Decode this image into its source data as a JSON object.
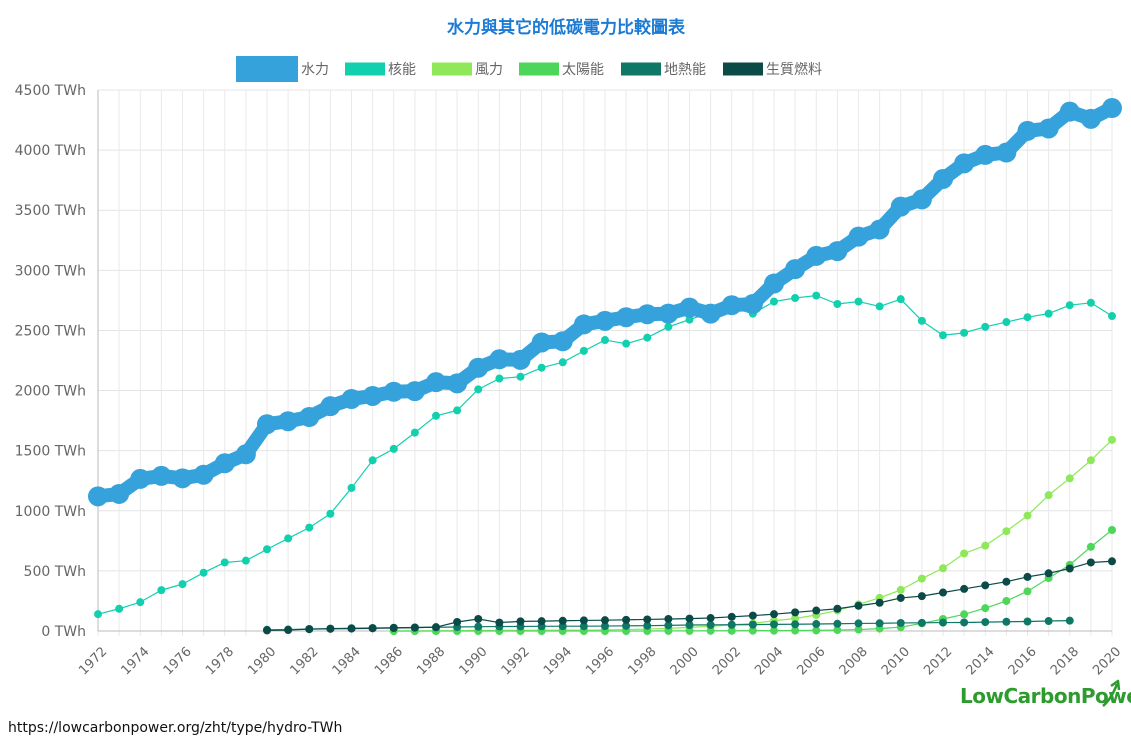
{
  "chart_data": {
    "type": "line",
    "title": "水力與其它的低碳電力比較圖表",
    "xlabel": "",
    "ylabel": "",
    "x_range": [
      1972,
      2020
    ],
    "ylim": [
      0,
      4500
    ],
    "y_ticks": [
      0,
      500,
      1000,
      1500,
      2000,
      2500,
      3000,
      3500,
      4000,
      4500
    ],
    "y_tick_suffix": " TWh",
    "x_ticks": [
      "1972",
      "1974",
      "1976",
      "1978",
      "1980",
      "1982",
      "1984",
      "1986",
      "1988",
      "1990",
      "1992",
      "1994",
      "1996",
      "1998",
      "2000",
      "2002",
      "2004",
      "2006",
      "2008",
      "2010",
      "2012",
      "2014",
      "2016",
      "2018",
      "2020"
    ],
    "grid": true,
    "legend_position": "top-center",
    "series": [
      {
        "name": "水力",
        "color": "#36a2dc",
        "emphasis": "thick",
        "x": [
          1972,
          1973,
          1974,
          1975,
          1976,
          1977,
          1978,
          1979,
          1980,
          1981,
          1982,
          1983,
          1984,
          1985,
          1986,
          1987,
          1988,
          1989,
          1990,
          1991,
          1992,
          1993,
          1994,
          1995,
          1996,
          1997,
          1998,
          1999,
          2000,
          2001,
          2002,
          2003,
          2004,
          2005,
          2006,
          2007,
          2008,
          2009,
          2010,
          2011,
          2012,
          2013,
          2014,
          2015,
          2016,
          2017,
          2018,
          2019,
          2020
        ],
        "values": [
          1120,
          1140,
          1265,
          1290,
          1270,
          1300,
          1395,
          1470,
          1720,
          1745,
          1780,
          1870,
          1930,
          1955,
          1990,
          1995,
          2070,
          2060,
          2190,
          2260,
          2255,
          2400,
          2410,
          2550,
          2580,
          2610,
          2635,
          2640,
          2690,
          2640,
          2710,
          2720,
          2890,
          3010,
          3120,
          3160,
          3280,
          3340,
          3530,
          3590,
          3760,
          3890,
          3960,
          3980,
          4160,
          4180,
          4320,
          4260,
          4350
        ]
      },
      {
        "name": "核能",
        "color": "#12d0ae",
        "emphasis": "normal",
        "x": [
          1972,
          1973,
          1974,
          1975,
          1976,
          1977,
          1978,
          1979,
          1980,
          1981,
          1982,
          1983,
          1984,
          1985,
          1986,
          1987,
          1988,
          1989,
          1990,
          1991,
          1992,
          1993,
          1994,
          1995,
          1996,
          1997,
          1998,
          1999,
          2000,
          2001,
          2002,
          2003,
          2004,
          2005,
          2006,
          2007,
          2008,
          2009,
          2010,
          2011,
          2012,
          2013,
          2014,
          2015,
          2016,
          2017,
          2018,
          2019,
          2020
        ],
        "values": [
          140,
          185,
          240,
          340,
          390,
          485,
          570,
          585,
          680,
          770,
          860,
          975,
          1190,
          1420,
          1515,
          1650,
          1790,
          1835,
          2010,
          2100,
          2115,
          2190,
          2235,
          2330,
          2420,
          2390,
          2440,
          2530,
          2590,
          2650,
          2690,
          2640,
          2740,
          2770,
          2790,
          2720,
          2740,
          2700,
          2760,
          2580,
          2460,
          2480,
          2530,
          2570,
          2610,
          2640,
          2710,
          2730,
          2620
        ]
      },
      {
        "name": "風力",
        "color": "#8ee85a",
        "emphasis": "normal",
        "x": [
          1986,
          1987,
          1988,
          1989,
          1990,
          1991,
          1992,
          1993,
          1994,
          1995,
          1996,
          1997,
          1998,
          1999,
          2000,
          2001,
          2002,
          2003,
          2004,
          2005,
          2006,
          2007,
          2008,
          2009,
          2010,
          2011,
          2012,
          2013,
          2014,
          2015,
          2016,
          2017,
          2018,
          2019,
          2020
        ],
        "values": [
          0,
          0,
          1,
          2,
          4,
          5,
          5,
          6,
          7,
          8,
          9,
          12,
          16,
          21,
          31,
          38,
          52,
          63,
          85,
          104,
          133,
          171,
          221,
          276,
          342,
          436,
          522,
          645,
          710,
          830,
          960,
          1130,
          1270,
          1420,
          1590
        ]
      },
      {
        "name": "太陽能",
        "color": "#4dd65a",
        "emphasis": "normal",
        "x": [
          1986,
          1987,
          1988,
          1989,
          1990,
          1991,
          1992,
          1993,
          1994,
          1995,
          1996,
          1997,
          1998,
          1999,
          2000,
          2001,
          2002,
          2003,
          2004,
          2005,
          2006,
          2007,
          2008,
          2009,
          2010,
          2011,
          2012,
          2013,
          2014,
          2015,
          2016,
          2017,
          2018,
          2019,
          2020
        ],
        "values": [
          0,
          0,
          0,
          0,
          0,
          0,
          0,
          0,
          0,
          0,
          0,
          0,
          0,
          1,
          1,
          2,
          2,
          3,
          3,
          4,
          5,
          8,
          12,
          20,
          32,
          64,
          100,
          139,
          190,
          250,
          330,
          440,
          550,
          700,
          840
        ]
      },
      {
        "name": "地熱能",
        "color": "#0f7766",
        "emphasis": "normal",
        "x": [
          1980,
          1981,
          1982,
          1983,
          1984,
          1985,
          1986,
          1987,
          1988,
          1989,
          1990,
          1991,
          1992,
          1993,
          1994,
          1995,
          1996,
          1997,
          1998,
          1999,
          2000,
          2001,
          2002,
          2003,
          2004,
          2005,
          2006,
          2007,
          2008,
          2009,
          2010,
          2011,
          2012,
          2013,
          2014,
          2015,
          2016,
          2017,
          2018
        ],
        "values": [
          10,
          12,
          17,
          20,
          23,
          25,
          27,
          29,
          31,
          33,
          36,
          37,
          38,
          39,
          40,
          40,
          41,
          43,
          44,
          47,
          50,
          51,
          52,
          53,
          55,
          56,
          58,
          60,
          63,
          64,
          67,
          68,
          70,
          71,
          74,
          77,
          79,
          83,
          86
        ]
      },
      {
        "name": "生質燃料",
        "color": "#0b4a47",
        "emphasis": "normal",
        "x": [
          1980,
          1981,
          1982,
          1983,
          1984,
          1985,
          1986,
          1987,
          1988,
          1989,
          1990,
          1991,
          1992,
          1993,
          1994,
          1995,
          1996,
          1997,
          1998,
          1999,
          2000,
          2001,
          2002,
          2003,
          2004,
          2005,
          2006,
          2007,
          2008,
          2009,
          2010,
          2011,
          2012,
          2013,
          2014,
          2015,
          2016,
          2017,
          2018,
          2019,
          2020
        ],
        "values": [
          5,
          8,
          15,
          18,
          20,
          22,
          25,
          28,
          32,
          75,
          100,
          70,
          80,
          82,
          85,
          88,
          90,
          93,
          96,
          100,
          103,
          108,
          118,
          128,
          140,
          155,
          170,
          185,
          210,
          235,
          275,
          290,
          320,
          350,
          380,
          410,
          450,
          480,
          520,
          570,
          580
        ]
      }
    ]
  },
  "footer": {
    "source_url": "https://lowcarbonpower.org/zht/type/hydro-TWh"
  },
  "brand": {
    "part1": "Low",
    "part2": "Carbon",
    "part3": "Power",
    "color": "#2e9b2e"
  }
}
